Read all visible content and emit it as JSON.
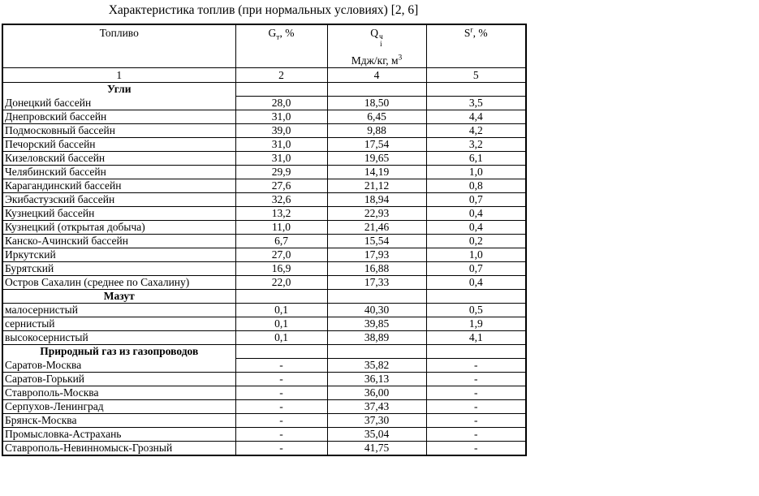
{
  "title": "Характеристика топлив (при нормальных условиях) [2, 6]",
  "table": {
    "headers": {
      "fuel": "Топливо",
      "g": {
        "base": "G",
        "sub": "т",
        "rest": ", %"
      },
      "q": {
        "base": "Q",
        "sub": "i",
        "sup": "ч",
        "unit": "Мдж/кг, м",
        "unit_sup": "3"
      },
      "s": {
        "base": "S",
        "sup": "r",
        "rest": ", %"
      }
    },
    "column_numbers": [
      "1",
      "2",
      "4",
      "5"
    ],
    "sections": [
      {
        "name": "Угли",
        "underline_name": false,
        "rows": [
          {
            "fuel": "Донецкий бассейн",
            "g": "28,0",
            "q": "18,50",
            "s": "3,5"
          },
          {
            "fuel": "Днепровский бассейн",
            "g": "31,0",
            "q": "6,45",
            "s": "4,4"
          },
          {
            "fuel": "Подмосковный бассейн",
            "g": "39,0",
            "q": "9,88",
            "s": "4,2"
          },
          {
            "fuel": "Печорский бассейн",
            "g": "31,0",
            "q": "17,54",
            "s": "3,2"
          },
          {
            "fuel": "Кизеловский бассейн",
            "g": "31,0",
            "q": "19,65",
            "s": "6,1"
          },
          {
            "fuel": "Челябинский бассейн",
            "g": "29,9",
            "q": "14,19",
            "s": "1,0"
          },
          {
            "fuel": "Карагандинский бассейн",
            "g": "27,6",
            "q": "21,12",
            "s": "0,8"
          },
          {
            "fuel": "Экибастузский бассейн",
            "g": "32,6",
            "q": "18,94",
            "s": "0,7"
          },
          {
            "fuel": "Кузнецкий бассейн",
            "g": "13,2",
            "q": "22,93",
            "s": "0,4"
          },
          {
            "fuel": "Кузнецкий (открытая добыча)",
            "g": "11,0",
            "q": "21,46",
            "s": "0,4"
          },
          {
            "fuel": "Канско-Ачинский бассейн",
            "g": "6,7",
            "q": "15,54",
            "s": "0,2"
          },
          {
            "fuel": "Иркутский",
            "g": "27,0",
            "q": "17,93",
            "s": "1,0"
          },
          {
            "fuel": "Бурятский",
            "g": "16,9",
            "q": "16,88",
            "s": "0,7"
          },
          {
            "fuel": "Остров Сахалин (среднее по Сахалину)",
            "g": "22,0",
            "q": "17,33",
            "s": "0,4"
          }
        ]
      },
      {
        "name": "Мазут",
        "underline_name": true,
        "rows": [
          {
            "fuel": "малосернистый",
            "g": "0,1",
            "q": "40,30",
            "s": "0,5"
          },
          {
            "fuel": "сернистый",
            "g": "0,1",
            "q": "39,85",
            "s": "1,9"
          },
          {
            "fuel": "высокосернистый",
            "g": "0,1",
            "q": "38,89",
            "s": "4,1"
          }
        ]
      },
      {
        "name": "Природный газ из газопроводов",
        "underline_name": false,
        "rows": [
          {
            "fuel": "Саратов-Москва",
            "g": "-",
            "q": "35,82",
            "s": "-"
          },
          {
            "fuel": "Саратов-Горький",
            "g": "-",
            "q": "36,13",
            "s": "-"
          },
          {
            "fuel": "Ставрополь-Москва",
            "g": "-",
            "q": "36,00",
            "s": "-"
          },
          {
            "fuel": "Серпухов-Ленинград",
            "g": "-",
            "q": "37,43",
            "s": "-"
          },
          {
            "fuel": "Брянск-Москва",
            "g": "-",
            "q": "37,30",
            "s": "-"
          },
          {
            "fuel": "Промысловка-Астрахань",
            "g": "-",
            "q": "35,04",
            "s": "-"
          },
          {
            "fuel": "Ставрополь-Невинномыск-Грозный",
            "g": "-",
            "q": "41,75",
            "s": "-"
          }
        ]
      }
    ]
  }
}
